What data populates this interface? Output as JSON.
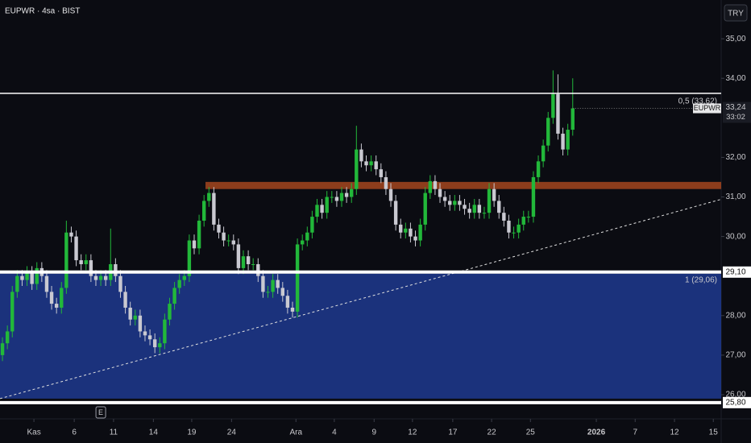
{
  "chart_data": {
    "type": "candlestick",
    "title": "EUPWR · 4sa · BIST",
    "currency_button": "TRY",
    "event_marker": {
      "label": "E",
      "x": 20
    },
    "xlim": [
      -0.5,
      146.2
    ],
    "ylim": [
      25.43,
      35.98
    ],
    "yticks": [
      {
        "value": 26,
        "label": "26,00"
      },
      {
        "value": 27,
        "label": "27,00"
      },
      {
        "value": 28,
        "label": "28,00"
      },
      {
        "value": 30,
        "label": "30,00"
      },
      {
        "value": 31,
        "label": "31,00"
      },
      {
        "value": 32,
        "label": "32,00"
      },
      {
        "value": 34,
        "label": "34,00"
      },
      {
        "value": 35,
        "label": "35,00"
      }
    ],
    "xticks": [
      {
        "value": 6.4,
        "label": "Kas"
      },
      {
        "value": 14.6,
        "label": "6"
      },
      {
        "value": 22.6,
        "label": "11"
      },
      {
        "value": 30.7,
        "label": "14"
      },
      {
        "value": 38.5,
        "label": "19"
      },
      {
        "value": 46.6,
        "label": "24"
      },
      {
        "value": 59.7,
        "label": "Ara"
      },
      {
        "value": 67.5,
        "label": "4"
      },
      {
        "value": 75.6,
        "label": "9"
      },
      {
        "value": 83.4,
        "label": "12"
      },
      {
        "value": 91.6,
        "label": "17"
      },
      {
        "value": 99.5,
        "label": "22"
      },
      {
        "value": 107.4,
        "label": "25"
      },
      {
        "value": 120.8,
        "label": "2026"
      },
      {
        "value": 128.7,
        "label": "7"
      },
      {
        "value": 136.7,
        "label": "12"
      },
      {
        "value": 144.6,
        "label": "15"
      }
    ],
    "series": [
      {
        "name": "EUPWR",
        "up_color": "#22b83a",
        "down_color": "#c9c9d1",
        "last_value_label": "33,24",
        "countdown": "33:02",
        "open": [
          27.0,
          27.3,
          27.6,
          28.6,
          29.0,
          28.9,
          29.1,
          28.8,
          29.2,
          29.0,
          28.6,
          28.3,
          28.2,
          28.7,
          30.1,
          30.0,
          29.4,
          29.3,
          29.4,
          29.0,
          28.9,
          29.0,
          28.9,
          29.3,
          29.0,
          28.6,
          28.2,
          27.9,
          28.0,
          27.6,
          27.5,
          27.4,
          27.2,
          27.3,
          27.9,
          28.3,
          28.7,
          28.9,
          29.0,
          29.9,
          29.7,
          30.4,
          30.9,
          31.1,
          30.3,
          30.1,
          29.9,
          29.9,
          29.8,
          29.2,
          29.5,
          29.3,
          29.3,
          29.0,
          28.6,
          28.6,
          28.9,
          28.7,
          28.5,
          28.2,
          28.1,
          29.8,
          29.9,
          30.1,
          30.5,
          30.8,
          30.6,
          31.0,
          31.0,
          30.9,
          31.1,
          31.0,
          31.2,
          32.2,
          31.9,
          31.8,
          31.9,
          31.7,
          31.5,
          31.2,
          30.9,
          30.3,
          30.1,
          30.2,
          30.0,
          29.9,
          30.3,
          31.1,
          31.4,
          31.2,
          31.0,
          30.9,
          30.8,
          30.9,
          30.8,
          30.7,
          30.6,
          30.8,
          30.6,
          30.6,
          31.2,
          30.9,
          30.6,
          30.4,
          30.1,
          30.1,
          30.3,
          30.5,
          30.5,
          31.5,
          31.9,
          32.3,
          33.0,
          33.6,
          32.6,
          32.2,
          32.7
        ],
        "high": [
          27.45,
          27.75,
          28.75,
          29.15,
          29.15,
          29.25,
          29.25,
          29.35,
          29.35,
          29.15,
          28.75,
          28.45,
          28.85,
          30.4,
          30.25,
          30.15,
          29.55,
          29.55,
          29.55,
          29.15,
          29.15,
          29.15,
          30.2,
          29.45,
          29.15,
          28.75,
          28.35,
          28.15,
          28.15,
          27.75,
          27.65,
          27.55,
          27.45,
          28.05,
          28.45,
          28.85,
          29.05,
          29.15,
          30.05,
          30.05,
          30.55,
          31.05,
          31.25,
          31.25,
          30.45,
          30.25,
          30.05,
          30.05,
          29.95,
          29.65,
          29.65,
          29.45,
          29.45,
          29.15,
          28.75,
          29.05,
          29.05,
          28.85,
          28.65,
          28.35,
          29.95,
          30.05,
          30.25,
          30.65,
          30.95,
          30.95,
          31.15,
          31.15,
          31.15,
          31.25,
          31.25,
          31.35,
          32.8,
          32.35,
          32.05,
          32.05,
          32.05,
          31.85,
          31.65,
          31.35,
          31.05,
          30.45,
          30.35,
          30.35,
          30.15,
          30.45,
          31.25,
          31.55,
          31.55,
          31.35,
          31.15,
          31.05,
          31.05,
          31.05,
          30.95,
          30.85,
          30.95,
          30.95,
          30.75,
          31.35,
          31.35,
          31.05,
          30.75,
          30.55,
          30.25,
          30.45,
          30.65,
          30.65,
          31.65,
          32.05,
          32.45,
          33.15,
          34.2,
          34.1,
          32.75,
          32.85,
          34.0
        ],
        "low": [
          26.85,
          27.15,
          27.45,
          28.45,
          28.75,
          28.75,
          28.65,
          28.65,
          28.85,
          28.45,
          28.15,
          28.05,
          28.05,
          28.55,
          29.85,
          29.25,
          29.15,
          29.15,
          28.85,
          28.75,
          28.75,
          28.75,
          28.75,
          28.85,
          28.45,
          28.05,
          27.75,
          27.75,
          27.45,
          27.35,
          27.25,
          27.05,
          27.05,
          27.15,
          27.75,
          28.15,
          28.55,
          28.75,
          28.85,
          29.55,
          29.55,
          30.25,
          30.75,
          30.15,
          29.95,
          29.75,
          29.75,
          29.65,
          29.05,
          29.05,
          29.15,
          29.15,
          28.85,
          28.45,
          28.45,
          28.45,
          28.55,
          28.35,
          28.05,
          27.95,
          27.95,
          29.65,
          29.75,
          29.95,
          30.35,
          30.45,
          30.45,
          30.85,
          30.75,
          30.75,
          30.85,
          30.85,
          31.05,
          31.75,
          31.65,
          31.65,
          31.55,
          31.35,
          31.05,
          30.75,
          30.15,
          29.95,
          29.95,
          29.85,
          29.75,
          29.75,
          30.15,
          30.95,
          31.05,
          30.85,
          30.75,
          30.65,
          30.65,
          30.65,
          30.55,
          30.45,
          30.45,
          30.45,
          30.45,
          30.45,
          30.75,
          30.45,
          30.25,
          29.95,
          29.95,
          29.95,
          30.15,
          30.35,
          30.35,
          31.35,
          31.75,
          32.15,
          32.85,
          32.45,
          32.05,
          32.05,
          32.55
        ],
        "close": [
          27.3,
          27.6,
          28.6,
          29.0,
          28.9,
          29.1,
          28.8,
          29.2,
          29.0,
          28.6,
          28.3,
          28.2,
          28.7,
          30.1,
          30.0,
          29.4,
          29.3,
          29.4,
          29.0,
          28.9,
          29.0,
          28.9,
          29.3,
          29.0,
          28.6,
          28.2,
          27.9,
          28.0,
          27.6,
          27.5,
          27.4,
          27.2,
          27.3,
          27.9,
          28.3,
          28.7,
          28.9,
          29.0,
          29.9,
          29.7,
          30.4,
          30.9,
          31.1,
          30.3,
          30.1,
          29.9,
          29.9,
          29.8,
          29.2,
          29.5,
          29.3,
          29.3,
          29.0,
          28.6,
          28.6,
          28.9,
          28.7,
          28.5,
          28.2,
          28.1,
          29.8,
          29.9,
          30.1,
          30.5,
          30.8,
          30.6,
          31.0,
          31.0,
          30.9,
          31.1,
          31.0,
          31.2,
          32.2,
          31.9,
          31.8,
          31.9,
          31.7,
          31.5,
          31.2,
          30.9,
          30.3,
          30.1,
          30.2,
          30.0,
          29.9,
          30.3,
          31.1,
          31.4,
          31.2,
          31.0,
          30.9,
          30.8,
          30.9,
          30.8,
          30.7,
          30.6,
          30.8,
          30.6,
          30.6,
          31.2,
          30.9,
          30.6,
          30.4,
          30.1,
          30.1,
          30.3,
          30.5,
          30.5,
          31.5,
          31.9,
          32.3,
          33.0,
          33.6,
          32.6,
          32.2,
          32.7,
          33.24
        ]
      }
    ],
    "zones": [
      {
        "from": 41.3,
        "low": 31.2,
        "high": 31.38,
        "color": "#a5471f"
      },
      {
        "from": -0.5,
        "low": 25.9,
        "high": 29.06,
        "color": "#1f3a8f",
        "label": "1 (29,06)"
      }
    ],
    "levels": [
      {
        "value": 33.62,
        "label": "0,5 (33,62)",
        "color": "#ffffff"
      },
      {
        "value": 29.1,
        "axis_label": "29,10",
        "color": "#ffffff"
      },
      {
        "value": 25.8,
        "axis_label": "25,80",
        "color": "#ffffff"
      }
    ],
    "trendline": {
      "x": [
        -0.5,
        146.2
      ],
      "y": [
        25.9,
        30.94
      ],
      "color": "#e0e0e0"
    }
  }
}
